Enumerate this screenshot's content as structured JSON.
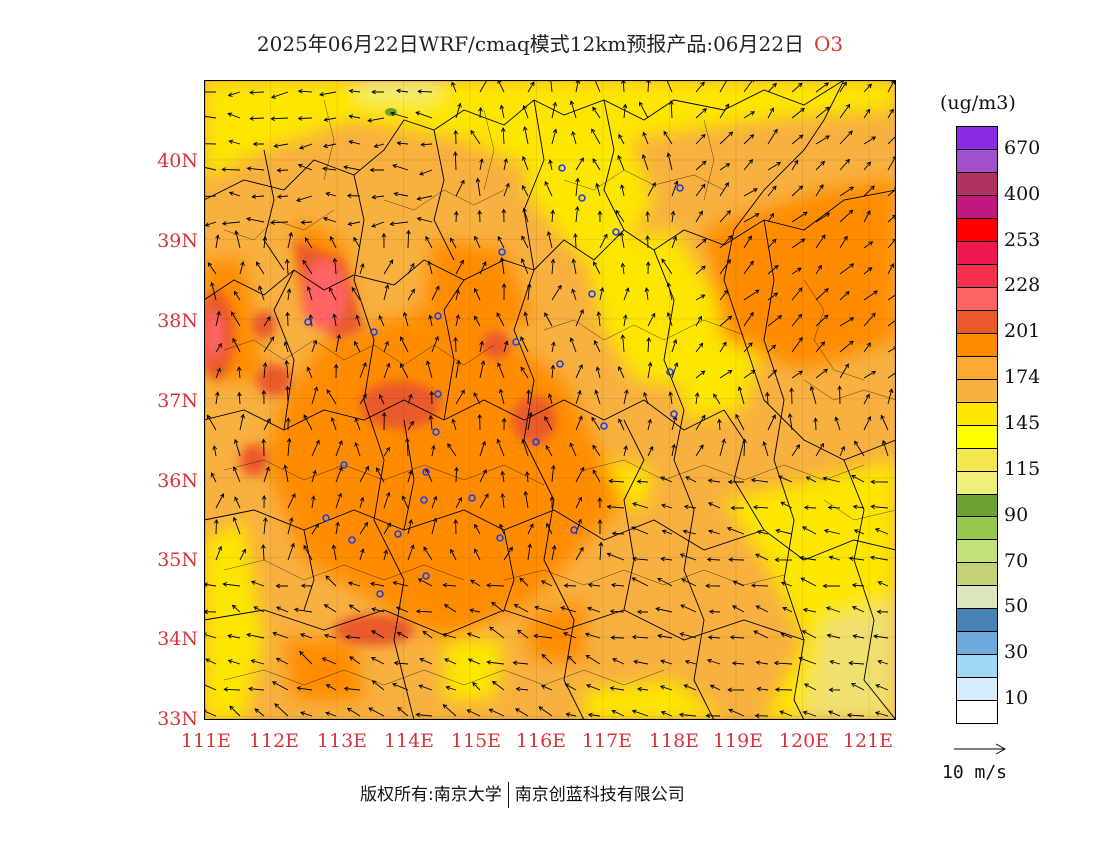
{
  "title": {
    "text": "2025年06月22日WRF/cmaq模式12km预报产品:06月22日",
    "species": "O3"
  },
  "axes": {
    "lat_labels": [
      "40N",
      "39N",
      "38N",
      "37N",
      "36N",
      "35N",
      "34N",
      "33N"
    ],
    "lon_labels": [
      "111E",
      "112E",
      "113E",
      "114E",
      "115E",
      "116E",
      "117E",
      "118E",
      "119E",
      "120E",
      "121E"
    ]
  },
  "legend": {
    "unit": "(ug/m3)",
    "labels": [
      "670",
      "400",
      "253",
      "228",
      "201",
      "174",
      "145",
      "115",
      "90",
      "70",
      "50",
      "30",
      "10"
    ],
    "colors": [
      "#8a2be2",
      "#a050c8",
      "#b03060",
      "#c01880",
      "#ff0000",
      "#f01850",
      "#f5304a",
      "#ff6464",
      "#ea5a2a",
      "#ff8c00",
      "#ffa834",
      "#f8b040",
      "#fde600",
      "#ffff00",
      "#f5e650",
      "#f0f078",
      "#6ea032",
      "#96c850",
      "#c3e178",
      "#c3d278",
      "#dce6bc",
      "#4682b4",
      "#6eaadc",
      "#a0d7f5",
      "#d7ebfa",
      "#ffffff"
    ]
  },
  "wind_reference": {
    "label": "10 m/s"
  },
  "footer": {
    "left": "版权所有:南京大学",
    "right": "南京创蓝科技有限公司"
  },
  "map": {
    "monitoring_station_marker": "blue-ring-marker",
    "boundary_color": "#000000",
    "wind_arrow_color": "#000000"
  }
}
